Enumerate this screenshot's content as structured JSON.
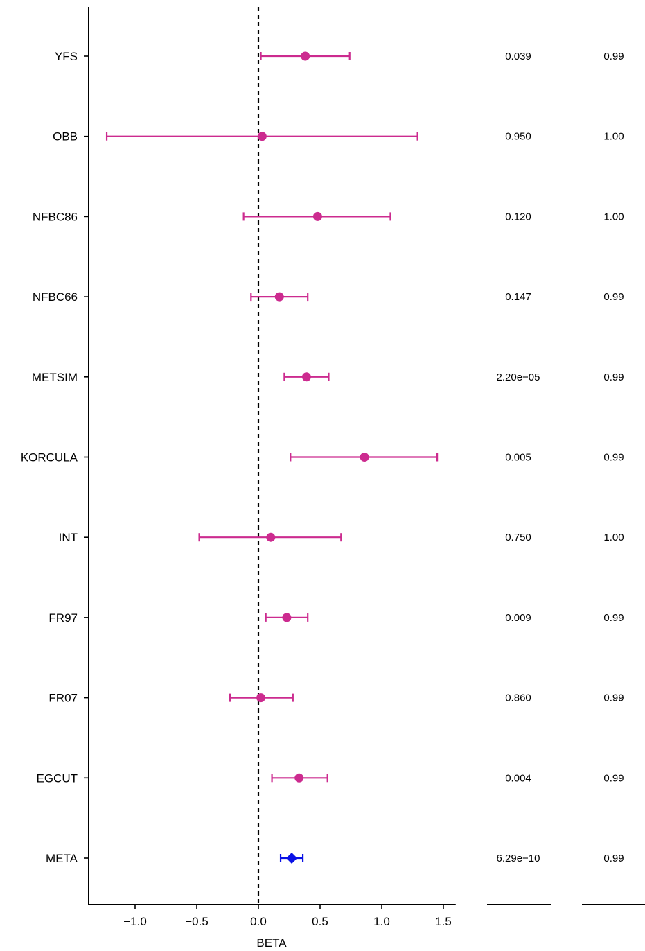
{
  "chart_data": {
    "type": "forest",
    "title": "",
    "xlabel": "BETA",
    "ylabel": "",
    "xlim": [
      -1.35,
      1.6
    ],
    "xticks": [
      -1.0,
      -0.5,
      0.0,
      0.5,
      1.0,
      1.5
    ],
    "xtick_labels": [
      "−1.0",
      "−0.5",
      "0.0",
      "0.5",
      "1.0",
      "1.5"
    ],
    "reference_line": 0.0,
    "colors": {
      "study": "#cc2b8f",
      "meta": "#0a12e6"
    },
    "studies": [
      {
        "name": "YFS",
        "beta": 0.38,
        "lower": 0.02,
        "upper": 0.74,
        "pvalue": "0.039",
        "col2": "0.99",
        "kind": "study"
      },
      {
        "name": "OBB",
        "beta": 0.03,
        "lower": -1.23,
        "upper": 1.29,
        "pvalue": "0.950",
        "col2": "1.00",
        "kind": "study"
      },
      {
        "name": "NFBC86",
        "beta": 0.48,
        "lower": -0.12,
        "upper": 1.07,
        "pvalue": "0.120",
        "col2": "1.00",
        "kind": "study"
      },
      {
        "name": "NFBC66",
        "beta": 0.17,
        "lower": -0.06,
        "upper": 0.4,
        "pvalue": "0.147",
        "col2": "0.99",
        "kind": "study"
      },
      {
        "name": "METSIM",
        "beta": 0.39,
        "lower": 0.21,
        "upper": 0.57,
        "pvalue": "2.20e−05",
        "col2": "0.99",
        "kind": "study"
      },
      {
        "name": "KORCULA",
        "beta": 0.86,
        "lower": 0.26,
        "upper": 1.45,
        "pvalue": "0.005",
        "col2": "0.99",
        "kind": "study"
      },
      {
        "name": "INT",
        "beta": 0.1,
        "lower": -0.48,
        "upper": 0.67,
        "pvalue": "0.750",
        "col2": "1.00",
        "kind": "study"
      },
      {
        "name": "FR97",
        "beta": 0.23,
        "lower": 0.06,
        "upper": 0.4,
        "pvalue": "0.009",
        "col2": "0.99",
        "kind": "study"
      },
      {
        "name": "FR07",
        "beta": 0.02,
        "lower": -0.23,
        "upper": 0.28,
        "pvalue": "0.860",
        "col2": "0.99",
        "kind": "study"
      },
      {
        "name": "EGCUT",
        "beta": 0.33,
        "lower": 0.11,
        "upper": 0.56,
        "pvalue": "0.004",
        "col2": "0.99",
        "kind": "study"
      },
      {
        "name": "META",
        "beta": 0.27,
        "lower": 0.18,
        "upper": 0.36,
        "pvalue": "6.29e−10",
        "col2": "0.99",
        "kind": "meta"
      }
    ]
  }
}
